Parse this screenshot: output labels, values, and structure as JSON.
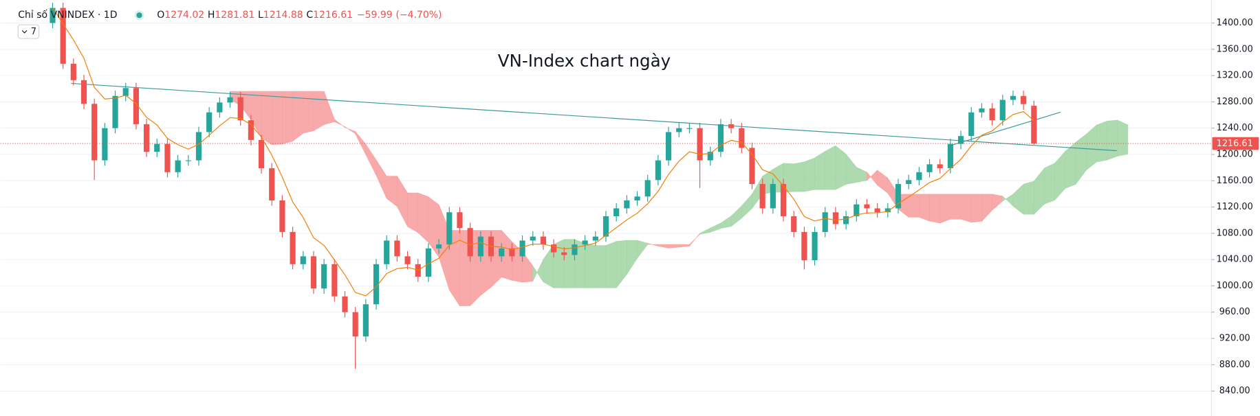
{
  "chart_data": {
    "type": "candlestick",
    "title": "VN-Index chart ngày",
    "symbol": "Chỉ số VNINDEX · 1D",
    "ohlc_labels": [
      "O",
      "H",
      "L",
      "C"
    ],
    "change": {
      "value": -59.99,
      "label": "−59.99"
    },
    "change_percent": {
      "value": -4.7,
      "label": "(−4.70%)"
    },
    "indicator_count": 7,
    "open": [
      1400,
      1423,
      1338,
      1313,
      1277,
      1191,
      1240,
      1289,
      1301,
      1246,
      1204,
      1216,
      1173,
      1191,
      1191,
      1234,
      1264,
      1279,
      1287,
      1252,
      1222,
      1179,
      1130,
      1082,
      1033,
      1045,
      996,
      1033,
      984,
      960,
      923,
      972,
      1033,
      1069,
      1045,
      1033,
      1014,
      1057,
      1063,
      1112,
      1088,
      1045,
      1075,
      1045,
      1057,
      1045,
      1069,
      1075,
      1063,
      1051,
      1047,
      1063,
      1069,
      1075,
      1106,
      1118,
      1130,
      1136,
      1161,
      1191,
      1234,
      1240,
      1240,
      1191,
      1204,
      1246,
      1240,
      1210,
      1155,
      1118,
      1155,
      1106,
      1082,
      1039,
      1082,
      1112,
      1094,
      1106,
      1124,
      1118,
      1112,
      1118,
      1155,
      1161,
      1173,
      1185,
      1179,
      1216,
      1228,
      1264,
      1270,
      1252,
      1283,
      1289,
      1274.02
    ],
    "high": [
      1431,
      1431,
      1346,
      1321,
      1285,
      1248,
      1297,
      1309,
      1309,
      1254,
      1224,
      1224,
      1199,
      1199,
      1242,
      1272,
      1287,
      1295,
      1295,
      1260,
      1230,
      1187,
      1138,
      1090,
      1053,
      1053,
      1041,
      1041,
      992,
      968,
      980,
      1041,
      1077,
      1077,
      1053,
      1041,
      1065,
      1071,
      1120,
      1120,
      1096,
      1083,
      1083,
      1065,
      1065,
      1077,
      1083,
      1083,
      1071,
      1059,
      1071,
      1077,
      1083,
      1114,
      1126,
      1138,
      1144,
      1169,
      1199,
      1242,
      1248,
      1248,
      1248,
      1212,
      1254,
      1254,
      1248,
      1218,
      1163,
      1163,
      1163,
      1114,
      1090,
      1090,
      1120,
      1120,
      1114,
      1132,
      1132,
      1126,
      1126,
      1163,
      1169,
      1181,
      1193,
      1193,
      1224,
      1236,
      1272,
      1278,
      1278,
      1291,
      1297,
      1297,
      1281.81
    ],
    "low": [
      1392,
      1330,
      1305,
      1269,
      1161,
      1183,
      1232,
      1281,
      1238,
      1196,
      1196,
      1165,
      1165,
      1183,
      1183,
      1226,
      1256,
      1271,
      1244,
      1214,
      1171,
      1122,
      1074,
      1025,
      1025,
      988,
      988,
      976,
      952,
      874,
      915,
      964,
      1025,
      1037,
      1025,
      1006,
      1006,
      1049,
      1055,
      1080,
      1037,
      1037,
      1037,
      1037,
      1037,
      1037,
      1061,
      1055,
      1043,
      1039,
      1039,
      1055,
      1061,
      1067,
      1098,
      1110,
      1122,
      1128,
      1153,
      1183,
      1226,
      1232,
      1149,
      1183,
      1196,
      1232,
      1202,
      1147,
      1110,
      1110,
      1098,
      1074,
      1025,
      1031,
      1074,
      1086,
      1086,
      1098,
      1110,
      1104,
      1104,
      1110,
      1147,
      1153,
      1165,
      1171,
      1171,
      1208,
      1220,
      1256,
      1244,
      1244,
      1275,
      1268,
      1214.88
    ],
    "close": [
      1423,
      1338,
      1313,
      1277,
      1191,
      1240,
      1289,
      1301,
      1246,
      1204,
      1216,
      1173,
      1191,
      1191,
      1234,
      1264,
      1279,
      1287,
      1252,
      1222,
      1179,
      1130,
      1082,
      1033,
      1045,
      996,
      1033,
      984,
      960,
      923,
      972,
      1033,
      1069,
      1045,
      1033,
      1014,
      1057,
      1063,
      1112,
      1088,
      1045,
      1075,
      1045,
      1057,
      1045,
      1069,
      1075,
      1063,
      1051,
      1047,
      1063,
      1069,
      1075,
      1106,
      1118,
      1130,
      1136,
      1161,
      1191,
      1234,
      1240,
      1240,
      1191,
      1204,
      1246,
      1240,
      1210,
      1155,
      1118,
      1155,
      1106,
      1082,
      1039,
      1082,
      1112,
      1094,
      1106,
      1124,
      1118,
      1112,
      1118,
      1155,
      1161,
      1173,
      1185,
      1179,
      1216,
      1228,
      1264,
      1270,
      1252,
      1283,
      1289,
      1276.6,
      1216.61
    ],
    "up_color": "#26a69a",
    "down_color": "#ef5350",
    "ylim": [
      802,
      1435
    ],
    "yticks": [
      {
        "value": 840,
        "label": "840.00"
      },
      {
        "value": 880,
        "label": "880.00"
      },
      {
        "value": 920,
        "label": "920.00"
      },
      {
        "value": 960,
        "label": "960.00"
      },
      {
        "value": 1000,
        "label": "1000.00"
      },
      {
        "value": 1040,
        "label": "1040.00"
      },
      {
        "value": 1080,
        "label": "1080.00"
      },
      {
        "value": 1120,
        "label": "1120.00"
      },
      {
        "value": 1160,
        "label": "1160.00"
      },
      {
        "value": 1200,
        "label": "1200.00"
      },
      {
        "value": 1240,
        "label": "1240.00"
      },
      {
        "value": 1280,
        "label": "1280.00"
      },
      {
        "value": 1320,
        "label": "1320.00"
      },
      {
        "value": 1360,
        "label": "1360.00"
      },
      {
        "value": 1400,
        "label": "1400.00"
      }
    ],
    "grid": true
  }
}
